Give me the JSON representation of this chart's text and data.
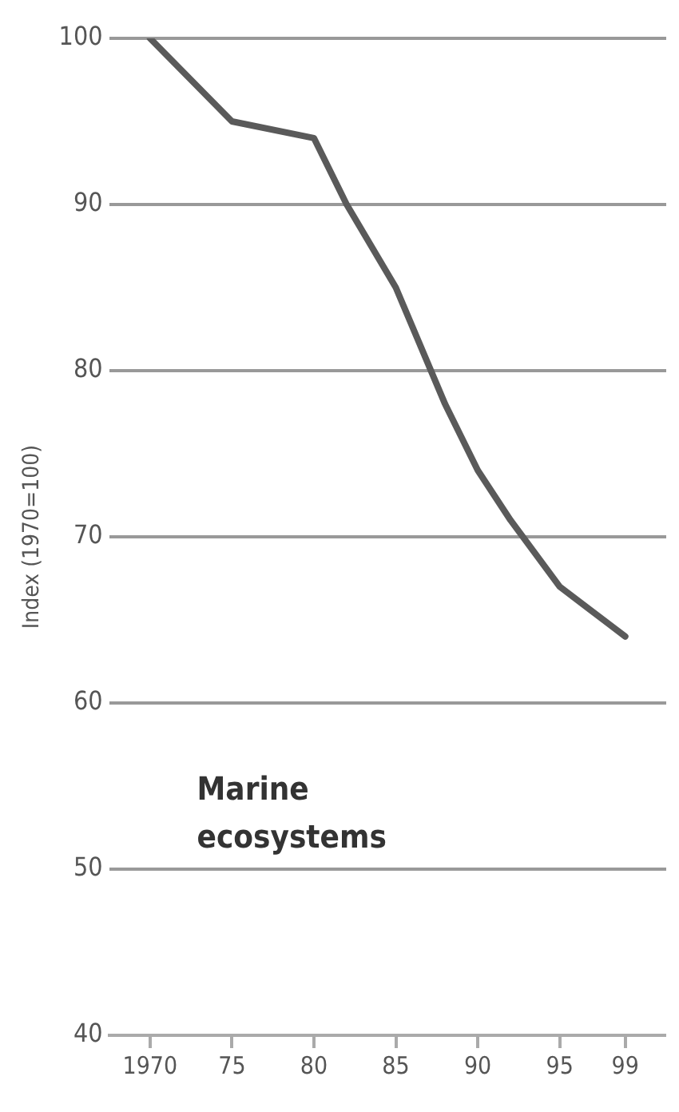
{
  "chart_data": {
    "type": "line",
    "ylabel": "Index (1970=100)",
    "x": [
      1970,
      1975,
      1980,
      1982,
      1985,
      1988,
      1990,
      1992,
      1995,
      1999
    ],
    "series": [
      {
        "name": "Marine ecosystems",
        "color": "#5a5a5a",
        "values": [
          100,
          95,
          94,
          90,
          85,
          78,
          74,
          71,
          67,
          64
        ]
      }
    ],
    "xlim": [
      1967.5,
      2001.5
    ],
    "xticks": [
      1970,
      {
        "value": 1975,
        "label": "75"
      },
      {
        "value": 1980,
        "label": "80"
      },
      {
        "value": 1985,
        "label": "85"
      },
      {
        "value": 1990,
        "label": "90"
      },
      {
        "value": 1995,
        "label": "95"
      },
      {
        "value": 1999,
        "label": "99"
      }
    ],
    "ylim": [
      40,
      100
    ],
    "yticks": [
      40,
      50,
      60,
      70,
      80,
      90,
      100
    ],
    "grid": "y",
    "legend": false
  }
}
